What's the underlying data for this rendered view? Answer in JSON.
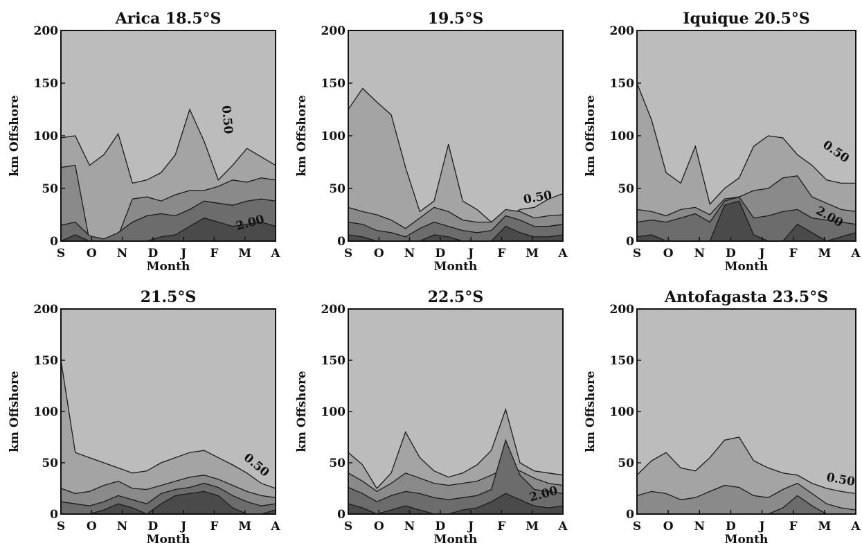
{
  "chart_data": [
    {
      "type": "heatmap",
      "title": "Arica 18.5°S",
      "xlabel": "Month",
      "ylabel": "km Offshore",
      "x_ticks": [
        "S",
        "O",
        "N",
        "D",
        "J",
        "F",
        "M",
        "A"
      ],
      "y_ticks": [
        "0",
        "50",
        "100",
        "150",
        "200"
      ],
      "ylim": [
        0,
        200
      ],
      "contour_labels": [
        {
          "text": "0.50",
          "month": 5.3,
          "km": 115,
          "rotate": 85
        },
        {
          "text": "2.00",
          "month": 6.2,
          "km": 14,
          "rotate": -15
        }
      ],
      "bands": [
        {
          "level": 0,
          "profile": [
            200,
            200,
            200,
            200,
            200,
            200,
            200,
            200,
            200,
            200,
            200,
            200,
            200,
            200,
            200,
            200
          ]
        },
        {
          "level": 1,
          "profile": [
            98,
            100,
            72,
            82,
            102,
            55,
            58,
            65,
            82,
            125,
            95,
            58,
            72,
            88,
            80,
            72
          ]
        },
        {
          "level": 2,
          "profile": [
            70,
            72,
            0,
            0,
            5,
            40,
            42,
            38,
            44,
            48,
            48,
            52,
            58,
            56,
            60,
            58
          ]
        },
        {
          "level": 3,
          "profile": [
            15,
            18,
            5,
            2,
            8,
            18,
            24,
            26,
            24,
            30,
            38,
            36,
            34,
            38,
            40,
            38
          ]
        },
        {
          "level": 4,
          "profile": [
            0,
            6,
            0,
            0,
            0,
            0,
            0,
            4,
            6,
            14,
            22,
            18,
            14,
            16,
            18,
            14
          ]
        }
      ]
    },
    {
      "type": "heatmap",
      "title": "19.5°S",
      "xlabel": "Month",
      "ylabel": "km Offshore",
      "x_ticks": [
        "S",
        "O",
        "N",
        "D",
        "J",
        "F",
        "M",
        "A"
      ],
      "y_ticks": [
        "0",
        "50",
        "100",
        "150",
        "200"
      ],
      "ylim": [
        0,
        200
      ],
      "contour_labels": [
        {
          "text": "0.50",
          "month": 6.2,
          "km": 38,
          "rotate": -10
        }
      ],
      "bands": [
        {
          "level": 0,
          "profile": [
            200,
            200,
            200,
            200,
            200,
            200,
            200,
            200,
            200,
            200,
            200,
            200,
            200,
            200,
            200,
            200
          ]
        },
        {
          "level": 1,
          "profile": [
            125,
            145,
            132,
            120,
            70,
            28,
            38,
            92,
            38,
            30,
            18,
            22,
            30,
            32,
            40,
            45
          ]
        },
        {
          "level": 2,
          "profile": [
            32,
            28,
            25,
            20,
            12,
            22,
            32,
            28,
            20,
            18,
            18,
            30,
            28,
            22,
            24,
            25
          ]
        },
        {
          "level": 3,
          "profile": [
            18,
            16,
            10,
            8,
            4,
            12,
            18,
            14,
            10,
            8,
            10,
            24,
            20,
            14,
            14,
            16
          ]
        },
        {
          "level": 4,
          "profile": [
            6,
            4,
            0,
            0,
            0,
            0,
            6,
            4,
            0,
            0,
            0,
            14,
            8,
            4,
            4,
            6
          ]
        }
      ]
    },
    {
      "type": "heatmap",
      "title": "Iquique 20.5°S",
      "xlabel": "Month",
      "ylabel": "km Offshore",
      "x_ticks": [
        "S",
        "O",
        "N",
        "D",
        "J",
        "F",
        "M",
        "A"
      ],
      "y_ticks": [
        "0",
        "50",
        "100",
        "150",
        "200"
      ],
      "ylim": [
        0,
        200
      ],
      "contour_labels": [
        {
          "text": "0.50",
          "month": 6.3,
          "km": 82,
          "rotate": 35
        },
        {
          "text": "2.00",
          "month": 6.1,
          "km": 20,
          "rotate": 30
        }
      ],
      "bands": [
        {
          "level": 0,
          "profile": [
            200,
            200,
            200,
            200,
            200,
            200,
            200,
            200,
            200,
            200,
            200,
            200,
            200,
            200,
            200,
            200
          ]
        },
        {
          "level": 1,
          "profile": [
            150,
            115,
            65,
            55,
            90,
            35,
            50,
            60,
            90,
            100,
            98,
            82,
            72,
            58,
            55,
            55
          ]
        },
        {
          "level": 2,
          "profile": [
            30,
            28,
            24,
            30,
            32,
            25,
            40,
            42,
            48,
            50,
            60,
            62,
            42,
            36,
            30,
            28
          ]
        },
        {
          "level": 3,
          "profile": [
            18,
            20,
            18,
            22,
            26,
            18,
            38,
            42,
            22,
            24,
            28,
            30,
            22,
            20,
            18,
            16
          ]
        },
        {
          "level": 4,
          "profile": [
            4,
            6,
            0,
            0,
            0,
            0,
            34,
            38,
            6,
            0,
            0,
            16,
            8,
            0,
            4,
            8
          ]
        }
      ]
    },
    {
      "type": "heatmap",
      "title": "21.5°S",
      "xlabel": "Month",
      "ylabel": "km Offshore",
      "x_ticks": [
        "S",
        "O",
        "N",
        "D",
        "J",
        "F",
        "M",
        "A"
      ],
      "y_ticks": [
        "0",
        "50",
        "100",
        "150",
        "200"
      ],
      "ylim": [
        0,
        200
      ],
      "contour_labels": [
        {
          "text": "0.50",
          "month": 6.3,
          "km": 45,
          "rotate": 40
        }
      ],
      "bands": [
        {
          "level": 0,
          "profile": [
            200,
            200,
            200,
            200,
            200,
            200,
            200,
            200,
            200,
            200,
            200,
            200,
            200,
            200,
            200,
            200
          ]
        },
        {
          "level": 1,
          "profile": [
            150,
            60,
            55,
            50,
            45,
            40,
            42,
            50,
            55,
            60,
            62,
            55,
            48,
            40,
            30,
            25
          ]
        },
        {
          "level": 2,
          "profile": [
            25,
            20,
            22,
            28,
            32,
            25,
            24,
            28,
            32,
            36,
            38,
            34,
            28,
            22,
            18,
            16
          ]
        },
        {
          "level": 3,
          "profile": [
            12,
            10,
            8,
            12,
            18,
            14,
            10,
            20,
            24,
            26,
            30,
            26,
            18,
            12,
            8,
            10
          ]
        },
        {
          "level": 4,
          "profile": [
            0,
            0,
            0,
            4,
            10,
            6,
            0,
            10,
            18,
            20,
            22,
            18,
            6,
            0,
            0,
            4
          ]
        }
      ]
    },
    {
      "type": "heatmap",
      "title": "22.5°S",
      "xlabel": "Month",
      "ylabel": "km Offshore",
      "x_ticks": [
        "S",
        "O",
        "N",
        "D",
        "J",
        "F",
        "M",
        "A"
      ],
      "y_ticks": [
        "0",
        "50",
        "100",
        "150",
        "200"
      ],
      "ylim": [
        0,
        200
      ],
      "contour_labels": [
        {
          "text": "2.00",
          "month": 6.4,
          "km": 16,
          "rotate": -15
        }
      ],
      "bands": [
        {
          "level": 0,
          "profile": [
            200,
            200,
            200,
            200,
            200,
            200,
            200,
            200,
            200,
            200,
            200,
            200,
            200,
            200,
            200,
            200
          ]
        },
        {
          "level": 1,
          "profile": [
            60,
            48,
            25,
            40,
            80,
            55,
            42,
            36,
            40,
            48,
            62,
            102,
            50,
            42,
            40,
            38
          ]
        },
        {
          "level": 2,
          "profile": [
            40,
            32,
            22,
            30,
            40,
            35,
            30,
            28,
            30,
            32,
            38,
            45,
            42,
            35,
            30,
            28
          ]
        },
        {
          "level": 3,
          "profile": [
            26,
            20,
            12,
            18,
            22,
            20,
            16,
            14,
            16,
            18,
            24,
            72,
            38,
            24,
            22,
            20
          ]
        },
        {
          "level": 4,
          "profile": [
            10,
            6,
            0,
            4,
            8,
            4,
            0,
            0,
            4,
            6,
            12,
            20,
            14,
            8,
            6,
            8
          ]
        }
      ]
    },
    {
      "type": "heatmap",
      "title": "Antofagasta 23.5°S",
      "xlabel": "Month",
      "ylabel": "km Offshore",
      "x_ticks": [
        "S",
        "O",
        "N",
        "D",
        "J",
        "F",
        "M",
        "A"
      ],
      "y_ticks": [
        "0",
        "50",
        "100",
        "150",
        "200"
      ],
      "ylim": [
        0,
        200
      ],
      "contour_labels": [
        {
          "text": "0.50",
          "month": 6.5,
          "km": 30,
          "rotate": 10
        }
      ],
      "bands": [
        {
          "level": 0,
          "profile": [
            200,
            200,
            200,
            200,
            200,
            200,
            200,
            200,
            200,
            200,
            200,
            200,
            200,
            200,
            200,
            200
          ]
        },
        {
          "level": 1,
          "profile": [
            38,
            52,
            60,
            45,
            42,
            55,
            72,
            75,
            52,
            45,
            40,
            38,
            30,
            25,
            22,
            20
          ]
        },
        {
          "level": 2,
          "profile": [
            18,
            22,
            20,
            14,
            16,
            22,
            28,
            26,
            18,
            16,
            24,
            30,
            20,
            10,
            6,
            4
          ]
        },
        {
          "level": 3,
          "profile": [
            0,
            0,
            0,
            0,
            0,
            0,
            0,
            0,
            0,
            0,
            6,
            18,
            8,
            0,
            0,
            0
          ]
        }
      ]
    }
  ],
  "contour_fill_colors": [
    "#d8d8d8",
    "#bcbcbc",
    "#a4a4a4",
    "#8a8a8a",
    "#6c6c6c",
    "#4a4a4a"
  ]
}
